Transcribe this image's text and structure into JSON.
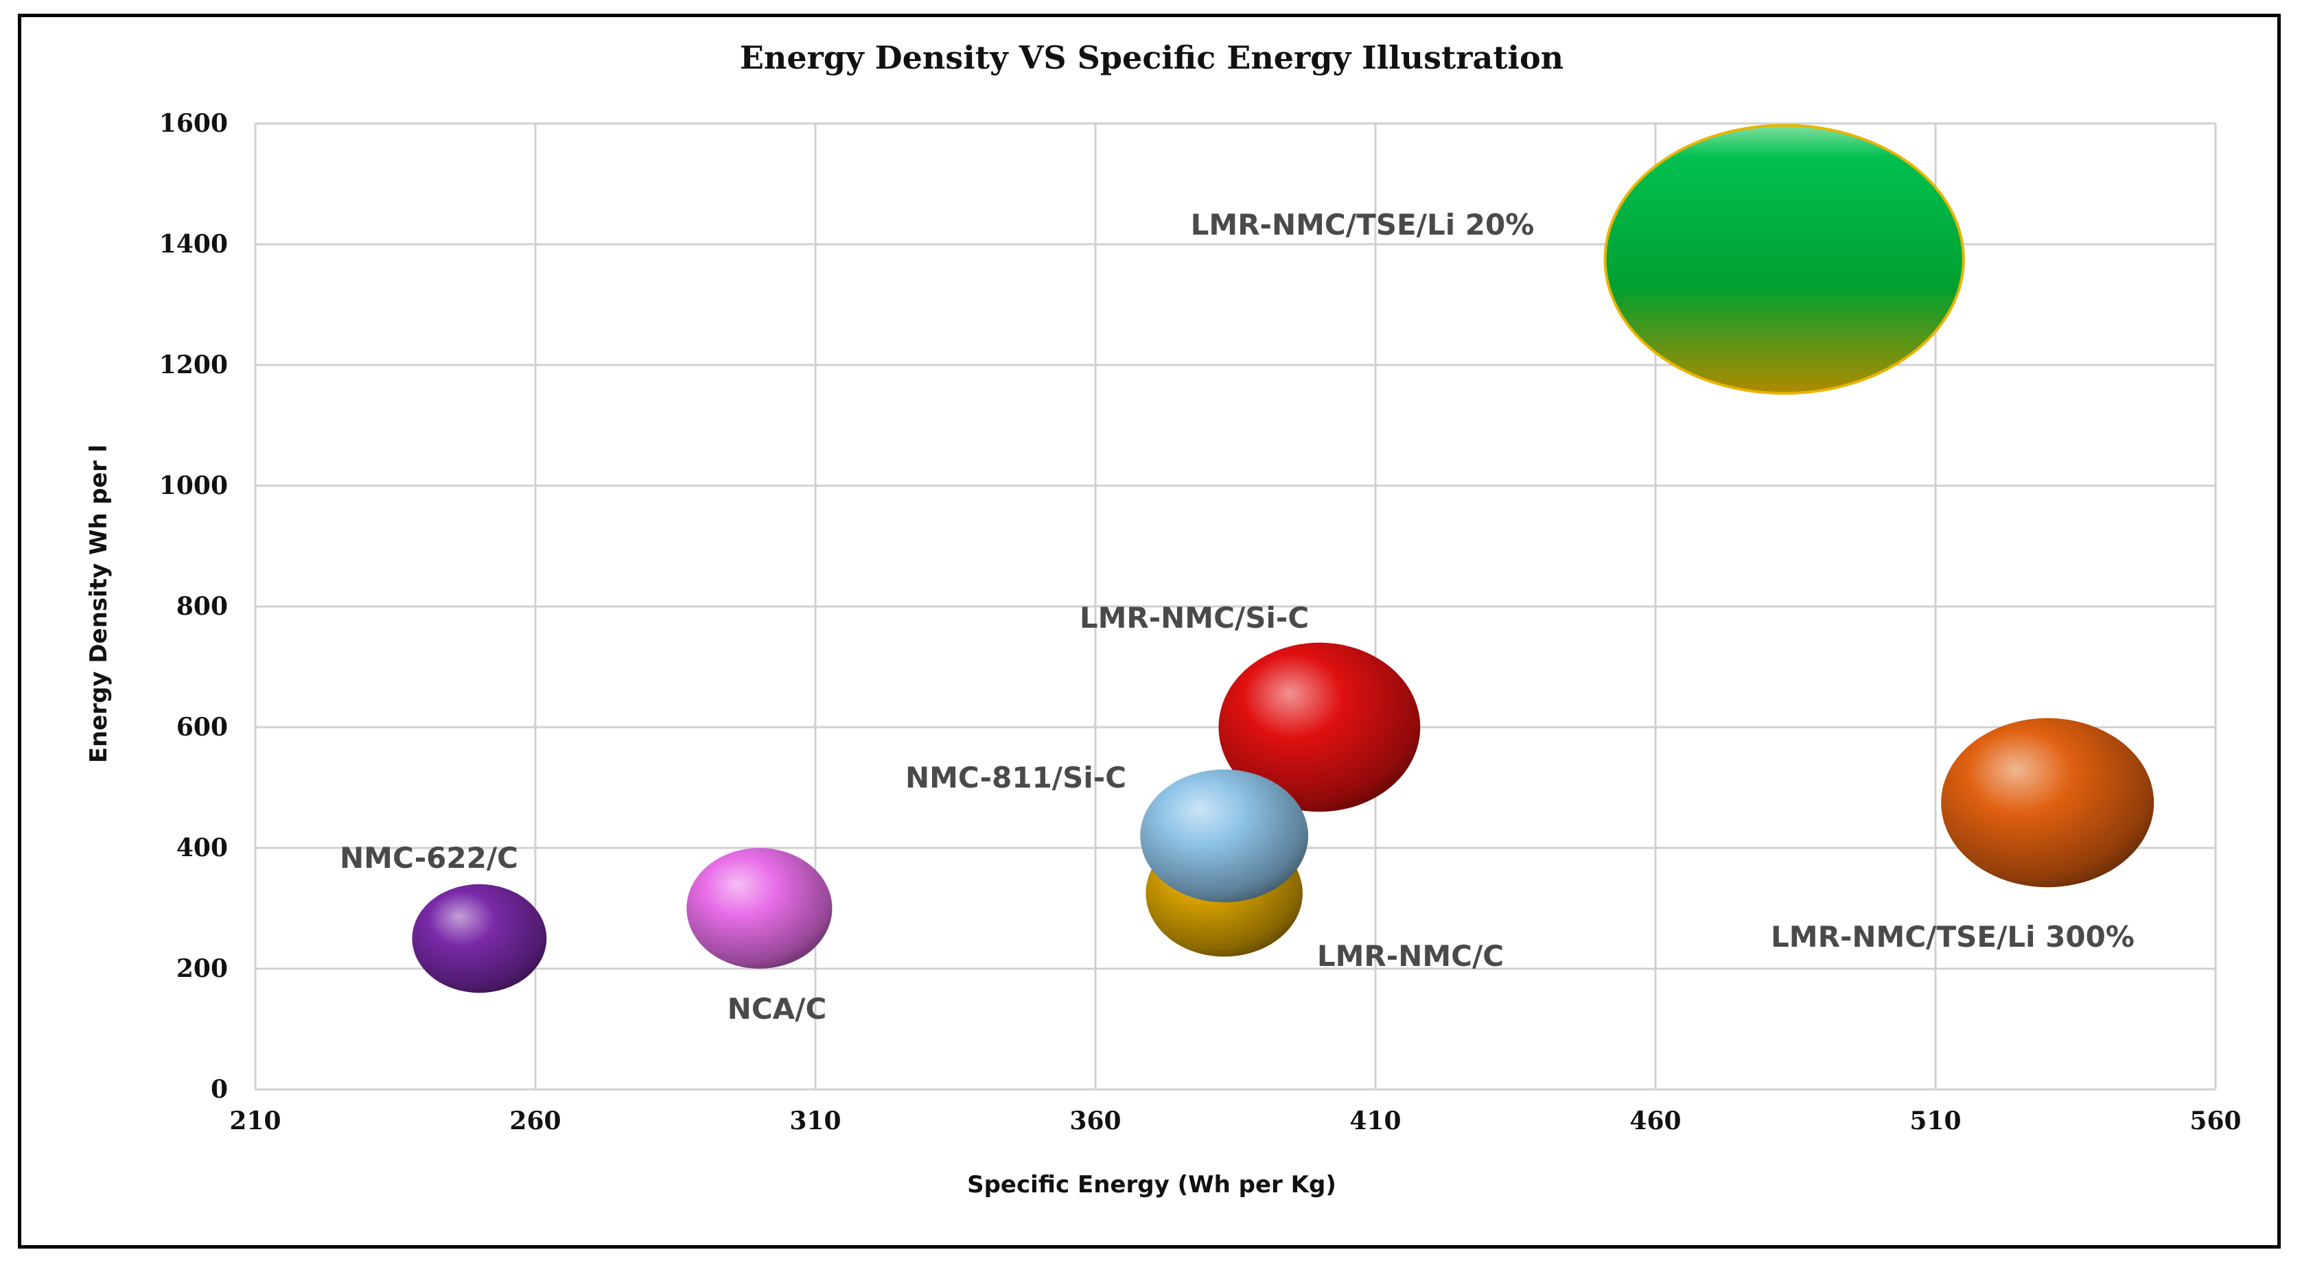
{
  "chart_data": {
    "type": "bubble",
    "title": "Energy Density VS Specific Energy Illustration",
    "xlabel": "Specific Energy (Wh per Kg)",
    "ylabel": "Energy Density Wh per l",
    "xlim": [
      210,
      560
    ],
    "ylim": [
      0,
      1600
    ],
    "xticks": [
      "210",
      "260",
      "310",
      "360",
      "410",
      "460",
      "510",
      "560"
    ],
    "yticks": [
      "0",
      "200",
      "400",
      "600",
      "800",
      "1000",
      "1200",
      "1400",
      "1600"
    ],
    "grid": true,
    "legend": "none",
    "points": [
      {
        "name": "NMC-622/C",
        "x": 250,
        "y": 250,
        "rx": 12,
        "ry": 90,
        "color": "#7a2aa8",
        "label_pos": "above-left"
      },
      {
        "name": "NCA/C",
        "x": 300,
        "y": 300,
        "rx": 13,
        "ry": 100,
        "color": "#e86ee8",
        "label_pos": "below-right"
      },
      {
        "name": "LMR-NMC/C",
        "x": 383,
        "y": 325,
        "rx": 14,
        "ry": 105,
        "color": "#d4a000",
        "label_pos": "below-right"
      },
      {
        "name": "NMC-811/Si-C",
        "x": 383,
        "y": 420,
        "rx": 15,
        "ry": 110,
        "color": "#8ec4e8",
        "label_pos": "above-left"
      },
      {
        "name": "LMR-NMC/Si-C",
        "x": 400,
        "y": 600,
        "rx": 18,
        "ry": 140,
        "color": "#e01010",
        "label_pos": "above-left"
      },
      {
        "name": "LMR-NMC/TSE/Li 300%",
        "x": 530,
        "y": 475,
        "rx": 19,
        "ry": 140,
        "color": "#e06010",
        "label_pos": "below-left"
      },
      {
        "name": "LMR-NMC/TSE/Li  20%",
        "x": 483,
        "y": 1375,
        "rx": 32,
        "ry": 222,
        "color": "#10b040",
        "label_pos": "left"
      }
    ]
  }
}
